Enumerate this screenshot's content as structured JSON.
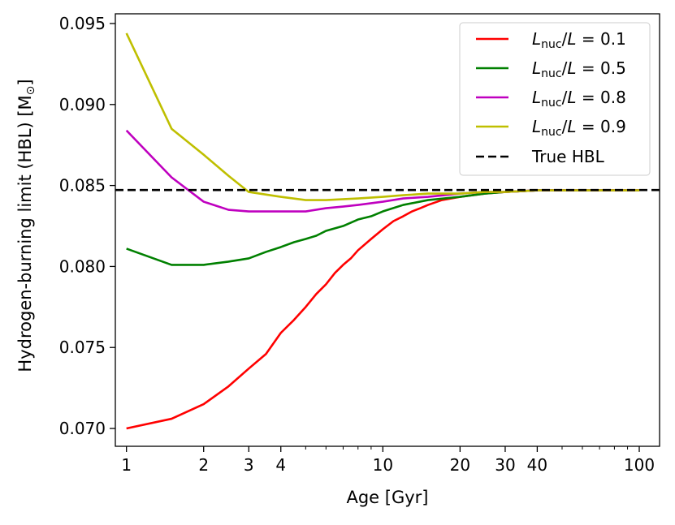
{
  "chart_data": {
    "type": "line",
    "title": "",
    "xlabel": "Age [Gyr]",
    "ylabel": "Hydrogen-burning limit (HBL) [M",
    "ylabel_symbol": "⊙",
    "ylabel_close": "]",
    "xscale": "log",
    "xlim": [
      0.905,
      120
    ],
    "ylim": [
      0.0689,
      0.0956
    ],
    "xticks": [
      1,
      2,
      3,
      4,
      10,
      20,
      30,
      40,
      100
    ],
    "xtick_labels": [
      "1",
      "2",
      "3",
      "4",
      "10",
      "20",
      "30",
      "40",
      "100"
    ],
    "yticks": [
      0.07,
      0.075,
      0.08,
      0.085,
      0.09,
      0.095
    ],
    "ytick_labels": [
      "0.070",
      "0.075",
      "0.080",
      "0.085",
      "0.090",
      "0.095"
    ],
    "grid": false,
    "legend_position": "top-right",
    "true_hbl": 0.08472,
    "series": [
      {
        "name": "L_nuc/L = 0.1",
        "legend_italic_L": "L",
        "legend_sub": "nuc",
        "legend_rest": "/",
        "legend_italic_L2": "L",
        "legend_value": " = 0.1",
        "color": "#ff0000",
        "x": [
          1,
          1.5,
          2,
          2.5,
          3,
          3.5,
          4,
          4.5,
          5,
          5.5,
          6,
          6.5,
          7,
          7.5,
          8,
          9,
          10,
          11,
          12,
          13,
          14,
          15,
          17,
          20,
          25,
          30,
          40,
          50,
          70,
          100
        ],
        "y": [
          0.07,
          0.0706,
          0.0715,
          0.0726,
          0.0737,
          0.0746,
          0.0759,
          0.0767,
          0.0775,
          0.0783,
          0.0789,
          0.0796,
          0.0801,
          0.0805,
          0.081,
          0.0817,
          0.0823,
          0.0828,
          0.0831,
          0.0834,
          0.0836,
          0.0838,
          0.0841,
          0.0843,
          0.0845,
          0.0846,
          0.0847,
          0.0847,
          0.0847,
          0.0847
        ]
      },
      {
        "name": "L_nuc/L = 0.5",
        "legend_italic_L": "L",
        "legend_sub": "nuc",
        "legend_rest": "/",
        "legend_italic_L2": "L",
        "legend_value": " = 0.5",
        "color": "#008000",
        "x": [
          1,
          1.5,
          2,
          2.5,
          3,
          3.5,
          4,
          4.5,
          5,
          5.5,
          6,
          7,
          8,
          9,
          10,
          12,
          15,
          20,
          25,
          30,
          40,
          50,
          70,
          100
        ],
        "y": [
          0.0811,
          0.0801,
          0.0801,
          0.0803,
          0.0805,
          0.0809,
          0.0812,
          0.0815,
          0.0817,
          0.0819,
          0.0822,
          0.0825,
          0.0829,
          0.0831,
          0.0834,
          0.0838,
          0.0841,
          0.0843,
          0.0845,
          0.0846,
          0.0847,
          0.0847,
          0.0847,
          0.0847
        ]
      },
      {
        "name": "L_nuc/L = 0.8",
        "legend_italic_L": "L",
        "legend_sub": "nuc",
        "legend_rest": "/",
        "legend_italic_L2": "L",
        "legend_value": " = 0.8",
        "color": "#bf00bf",
        "x": [
          1,
          1.5,
          2,
          2.5,
          3,
          4,
          5,
          6,
          7,
          8,
          10,
          12,
          15,
          20,
          25,
          30,
          40,
          50,
          70,
          100
        ],
        "y": [
          0.0884,
          0.0855,
          0.084,
          0.0835,
          0.0834,
          0.0834,
          0.0834,
          0.0836,
          0.0837,
          0.0838,
          0.084,
          0.0842,
          0.0843,
          0.0845,
          0.0846,
          0.0846,
          0.0847,
          0.0847,
          0.0847,
          0.0847
        ]
      },
      {
        "name": "L_nuc/L = 0.9",
        "legend_italic_L": "L",
        "legend_sub": "nuc",
        "legend_rest": "/",
        "legend_italic_L2": "L",
        "legend_value": " = 0.9",
        "color": "#bfbf00",
        "x": [
          1,
          1.5,
          2,
          2.5,
          3,
          4,
          5,
          6,
          8,
          10,
          12,
          15,
          20,
          25,
          30,
          40,
          50,
          70,
          100
        ],
        "y": [
          0.0944,
          0.0885,
          0.0869,
          0.0856,
          0.0846,
          0.0843,
          0.0841,
          0.0841,
          0.0842,
          0.0843,
          0.0844,
          0.0845,
          0.0845,
          0.0846,
          0.0846,
          0.0847,
          0.0847,
          0.0847,
          0.0847
        ]
      }
    ],
    "reference_line": {
      "name": "True HBL",
      "color": "#000000",
      "style": "dashed",
      "y": 0.08472
    }
  }
}
